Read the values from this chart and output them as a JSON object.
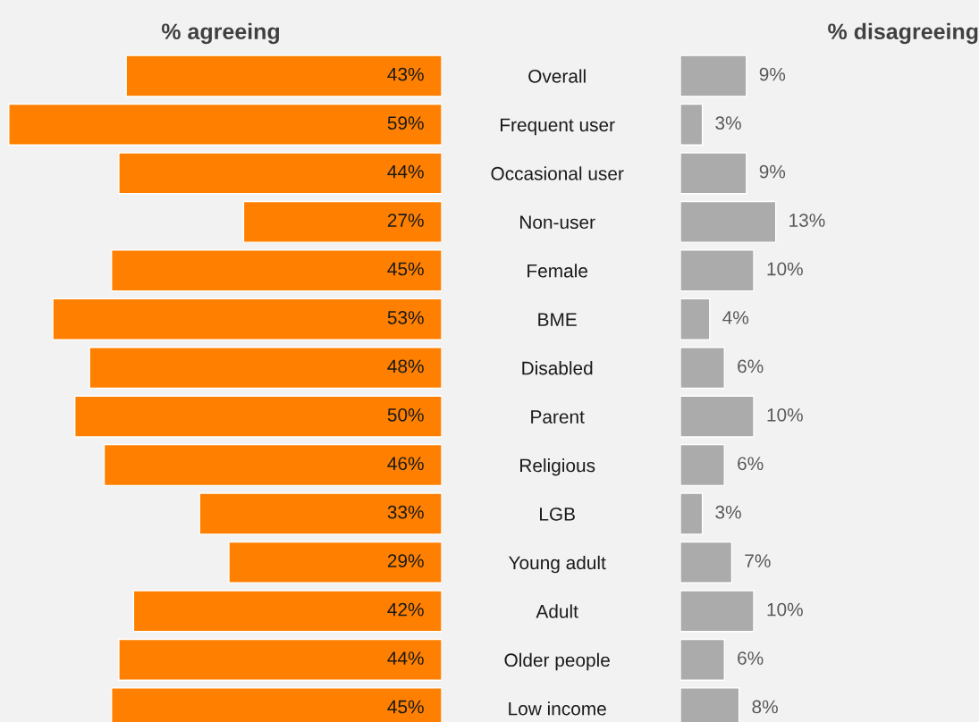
{
  "chart_data": [
    {
      "type": "bar",
      "orientation": "horizontal",
      "title": "% agreeing",
      "categories": [
        "Overall",
        "Frequent user",
        "Occasional user",
        "Non-user",
        "Female",
        "BME",
        "Disabled",
        "Parent",
        "Religious",
        "LGB",
        "Young adult",
        "Adult",
        "Older people",
        "Low income"
      ],
      "values": [
        43,
        59,
        44,
        27,
        45,
        53,
        48,
        50,
        46,
        33,
        29,
        42,
        44,
        45
      ],
      "value_labels": [
        "43%",
        "59%",
        "44%",
        "27%",
        "45%",
        "53%",
        "48%",
        "50%",
        "46%",
        "33%",
        "29%",
        "42%",
        "44%",
        "45%"
      ],
      "color": "#ff8000",
      "xlim": [
        60.2,
        0
      ],
      "tick_labels": "y",
      "grid": false,
      "legend": false
    },
    {
      "type": "bar",
      "orientation": "horizontal",
      "title": "% disagreeing",
      "categories": [
        null,
        null,
        null,
        null,
        null,
        null,
        null,
        null,
        null,
        null,
        null,
        null,
        null,
        null
      ],
      "values": [
        9,
        3,
        9,
        13,
        10,
        4,
        6,
        10,
        6,
        3,
        7,
        10,
        6,
        8
      ],
      "value_labels": [
        "9%",
        "3%",
        "9%",
        "13%",
        "10%",
        "4%",
        "6%",
        "10%",
        "6%",
        "3%",
        "7%",
        "10%",
        "6%",
        "8%"
      ],
      "color": "#ababab",
      "xlim": [
        0,
        40.7
      ],
      "tick_labels": false,
      "grid": false,
      "legend": false
    }
  ]
}
